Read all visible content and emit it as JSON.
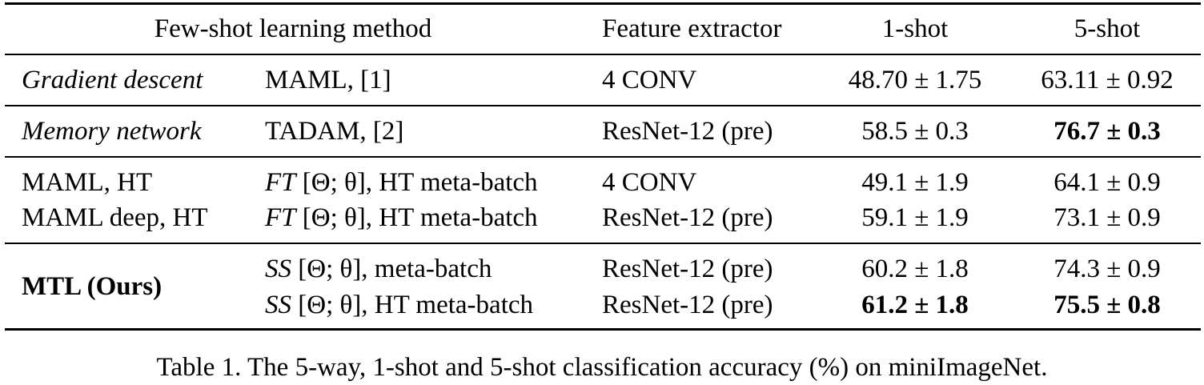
{
  "table": {
    "headers": {
      "method": "Few-shot learning method",
      "extractor": "Feature extractor",
      "one_shot": "1-shot",
      "five_shot": "5-shot"
    },
    "rows": [
      {
        "group": "Gradient descent",
        "method": "MAML, [1]",
        "extractor": "4 CONV",
        "one_shot": "48.70 ± 1.75",
        "five_shot": "63.11 ± 0.92"
      },
      {
        "group": "Memory network",
        "method": "TADAM, [2]",
        "extractor": "ResNet-12 (pre)",
        "one_shot": "58.5 ± 0.3",
        "five_shot": "76.7 ± 0.3"
      },
      {
        "group": "MAML, HT",
        "method_prefix": "FT",
        "method_suffix": " [Θ; θ], HT meta-batch",
        "extractor": "4 CONV",
        "one_shot": "49.1 ± 1.9",
        "five_shot": "64.1 ± 0.9"
      },
      {
        "group": "MAML deep, HT",
        "method_prefix": "FT",
        "method_suffix": " [Θ; θ], HT meta-batch",
        "extractor": "ResNet-12 (pre)",
        "one_shot": "59.1 ± 1.9",
        "five_shot": "73.1 ± 0.9"
      },
      {
        "group": "MTL (Ours)",
        "method_prefix": "SS",
        "method_suffix": " [Θ; θ], meta-batch",
        "extractor": "ResNet-12 (pre)",
        "one_shot": "60.2 ± 1.8",
        "five_shot": "74.3 ± 0.9"
      },
      {
        "method_prefix": "SS",
        "method_suffix": " [Θ; θ], HT meta-batch",
        "extractor": "ResNet-12 (pre)",
        "one_shot": "61.2 ± 1.8",
        "five_shot": "75.5 ± 0.8"
      }
    ]
  },
  "caption": "Table 1. The 5-way, 1-shot and 5-shot classification accuracy (%) on miniImageNet."
}
